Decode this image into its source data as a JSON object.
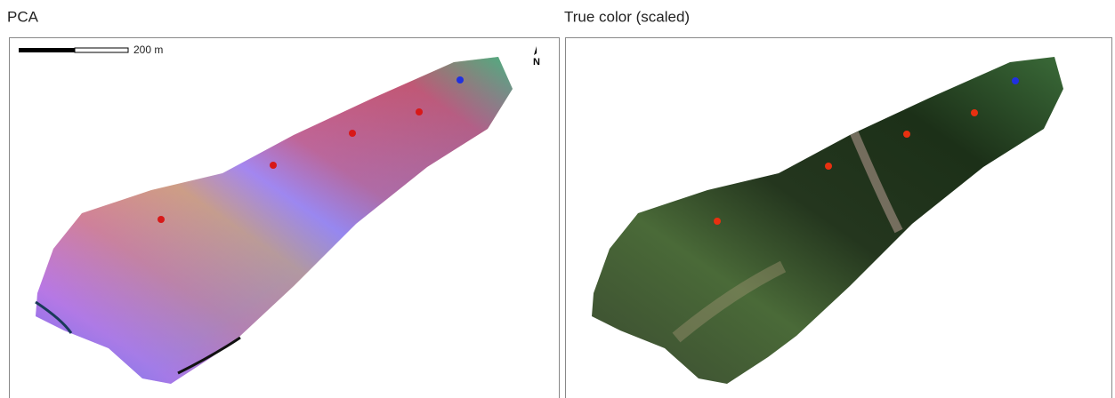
{
  "panels": [
    {
      "title": "PCA"
    },
    {
      "title": "True color (scaled)"
    }
  ],
  "scale_bar": {
    "label": "200 m"
  },
  "north_arrow": {
    "label": "N"
  }
}
